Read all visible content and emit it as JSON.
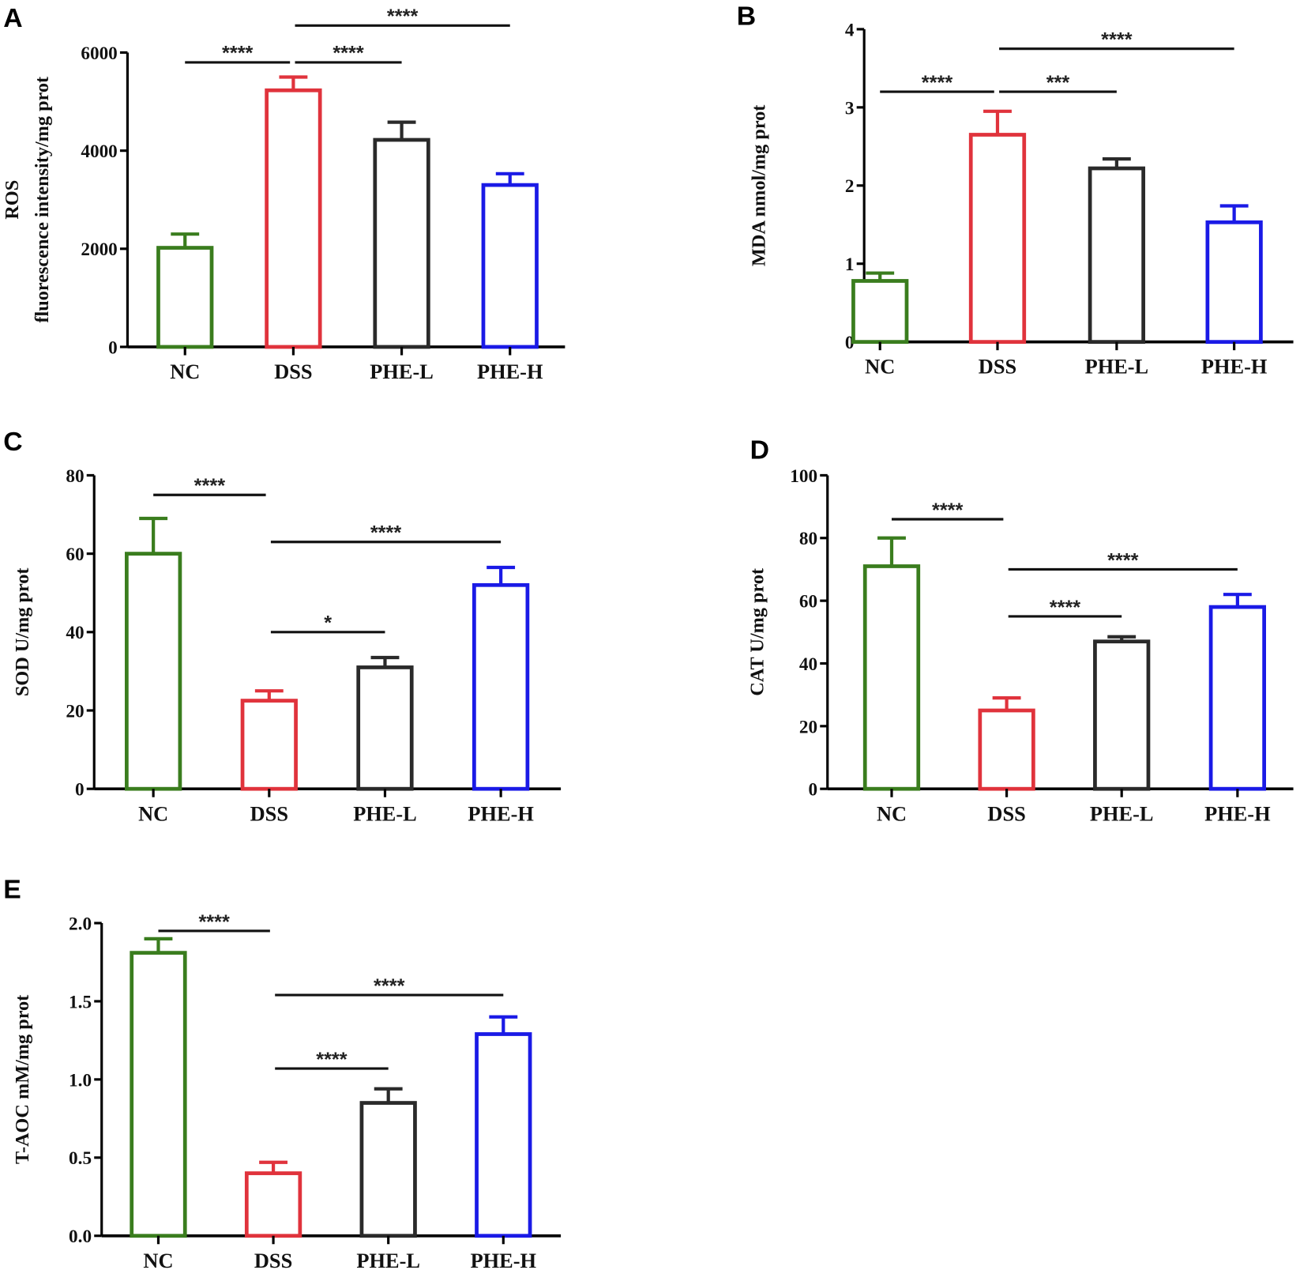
{
  "colors": {
    "NC": "#3a7d1e",
    "DSS": "#e0333c",
    "PHE-L": "#2a2a2a",
    "PHE-H": "#1a1ae6"
  },
  "chart_data": [
    {
      "panel": "A",
      "type": "bar",
      "categories": [
        "NC",
        "DSS",
        "PHE-L",
        "PHE-H"
      ],
      "values": [
        2020,
        5230,
        4220,
        3300
      ],
      "error_upper": [
        2300,
        5500,
        4580,
        3530
      ],
      "ylabel": [
        "ROS",
        "fluorescence intensity/mg prot"
      ],
      "ylim": [
        0,
        6000
      ],
      "yticks": [
        0,
        2000,
        4000,
        6000
      ],
      "ytick_labels": [
        "0",
        "2000",
        "4000",
        "6000"
      ],
      "significance": [
        {
          "from": 0,
          "to": 1,
          "y": 5800,
          "label": "****"
        },
        {
          "from": 1,
          "to": 2,
          "y": 5800,
          "label": "****"
        },
        {
          "from": 1,
          "to": 3,
          "y": 6550,
          "label": "****"
        }
      ]
    },
    {
      "panel": "B",
      "type": "bar",
      "categories": [
        "NC",
        "DSS",
        "PHE-L",
        "PHE-H"
      ],
      "values": [
        0.78,
        2.65,
        2.22,
        1.53
      ],
      "error_upper": [
        0.88,
        2.95,
        2.34,
        1.74
      ],
      "ylabel": [
        "MDA nmol/mg prot"
      ],
      "ylim": [
        0,
        4
      ],
      "yticks": [
        0,
        1,
        2,
        3,
        4
      ],
      "ytick_labels": [
        "0",
        "1",
        "2",
        "3",
        "4"
      ],
      "significance": [
        {
          "from": 0,
          "to": 1,
          "y": 3.2,
          "label": "****"
        },
        {
          "from": 1,
          "to": 2,
          "y": 3.2,
          "label": "***"
        },
        {
          "from": 1,
          "to": 3,
          "y": 3.75,
          "label": "****"
        }
      ]
    },
    {
      "panel": "C",
      "type": "bar",
      "categories": [
        "NC",
        "DSS",
        "PHE-L",
        "PHE-H"
      ],
      "values": [
        60,
        22.5,
        31,
        52
      ],
      "error_upper": [
        69,
        25,
        33.5,
        56.5
      ],
      "ylabel": [
        "SOD U/mg prot"
      ],
      "ylim": [
        0,
        80
      ],
      "yticks": [
        0,
        20,
        40,
        60,
        80
      ],
      "ytick_labels": [
        "0",
        "20",
        "40",
        "60",
        "80"
      ],
      "significance": [
        {
          "from": 0,
          "to": 1,
          "y": 75,
          "label": "****"
        },
        {
          "from": 1,
          "to": 2,
          "y": 40,
          "label": "*"
        },
        {
          "from": 1,
          "to": 3,
          "y": 63,
          "label": "****"
        }
      ]
    },
    {
      "panel": "D",
      "type": "bar",
      "categories": [
        "NC",
        "DSS",
        "PHE-L",
        "PHE-H"
      ],
      "values": [
        71,
        25,
        47,
        58
      ],
      "error_upper": [
        80,
        29,
        48.5,
        62
      ],
      "ylabel": [
        "CAT U/mg prot"
      ],
      "ylim": [
        0,
        100
      ],
      "yticks": [
        0,
        20,
        40,
        60,
        80,
        100
      ],
      "ytick_labels": [
        "0",
        "20",
        "40",
        "60",
        "80",
        "100"
      ],
      "significance": [
        {
          "from": 0,
          "to": 1,
          "y": 86,
          "label": "****"
        },
        {
          "from": 1,
          "to": 2,
          "y": 55,
          "label": "****"
        },
        {
          "from": 1,
          "to": 3,
          "y": 70,
          "label": "****"
        }
      ]
    },
    {
      "panel": "E",
      "type": "bar",
      "categories": [
        "NC",
        "DSS",
        "PHE-L",
        "PHE-H"
      ],
      "values": [
        1.81,
        0.4,
        0.85,
        1.29
      ],
      "error_upper": [
        1.9,
        0.47,
        0.94,
        1.4
      ],
      "ylabel": [
        "T-AOC mM/mg prot"
      ],
      "ylim": [
        0,
        2.0
      ],
      "yticks": [
        0,
        0.5,
        1.0,
        1.5,
        2.0
      ],
      "ytick_labels": [
        "0.0",
        "0.5",
        "1.0",
        "1.5",
        "2.0"
      ],
      "significance": [
        {
          "from": 0,
          "to": 1,
          "y": 1.95,
          "label": "****"
        },
        {
          "from": 1,
          "to": 2,
          "y": 1.07,
          "label": "****"
        },
        {
          "from": 1,
          "to": 3,
          "y": 1.54,
          "label": "****"
        }
      ]
    }
  ]
}
